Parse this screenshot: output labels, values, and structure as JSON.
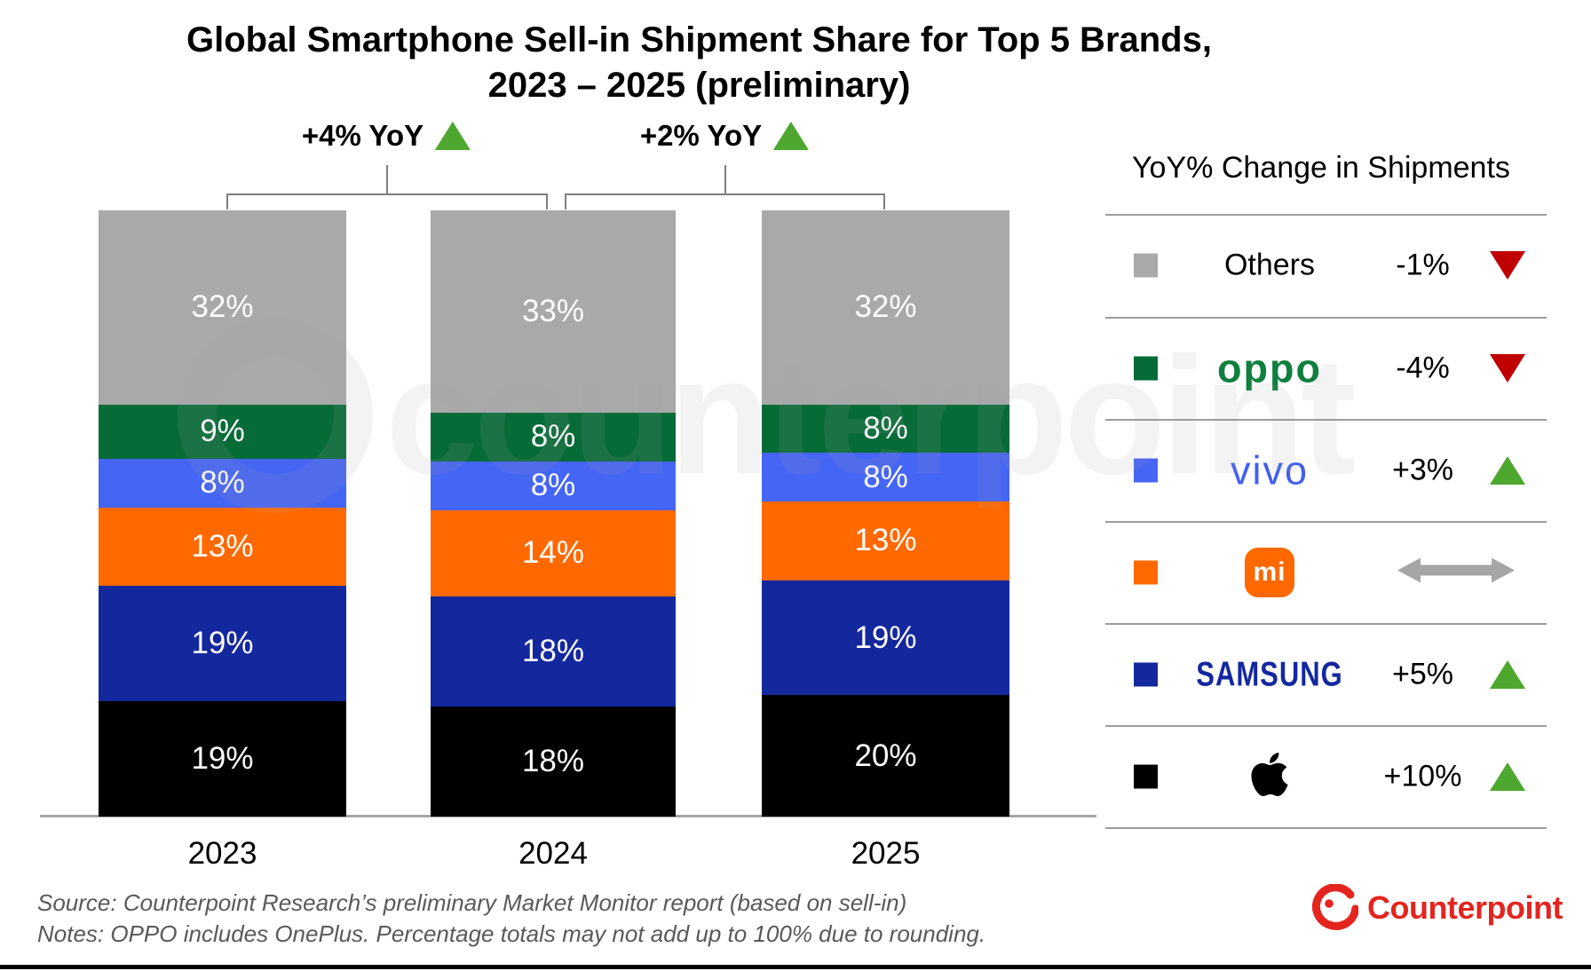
{
  "title": {
    "line1": "Global Smartphone Sell-in Shipment Share for Top 5 Brands,",
    "line2": "2023 – 2025 (preliminary)"
  },
  "watermark": {
    "text": "counterpoint"
  },
  "chart_data": {
    "type": "bar",
    "subtype": "stacked-100-percent",
    "title": "Global Smartphone Sell-in Shipment Share for Top 5 Brands, 2023 – 2025 (preliminary)",
    "categories": [
      "2023",
      "2024",
      "2025"
    ],
    "unit": "%",
    "series_bottom_to_top": [
      {
        "name": "Apple",
        "color": "#000000",
        "values": [
          19,
          18,
          20
        ]
      },
      {
        "name": "Samsung",
        "color": "#14289E",
        "values": [
          19,
          18,
          19
        ]
      },
      {
        "name": "Xiaomi",
        "color": "#FF6900",
        "values": [
          13,
          14,
          13
        ]
      },
      {
        "name": "vivo",
        "color": "#4565F5",
        "values": [
          8,
          8,
          8
        ]
      },
      {
        "name": "OPPO",
        "color": "#076B38",
        "values": [
          9,
          8,
          8
        ]
      },
      {
        "name": "Others",
        "color": "#A9A9A9",
        "values": [
          32,
          33,
          32
        ]
      }
    ],
    "annotations": [
      {
        "between": [
          "2023",
          "2024"
        ],
        "label": "+4% YoY",
        "direction": "up"
      },
      {
        "between": [
          "2024",
          "2025"
        ],
        "label": "+2% YoY",
        "direction": "up"
      }
    ],
    "grid": false,
    "legend_position": "right"
  },
  "legend": {
    "header": "YoY% Change in Shipments",
    "rows": [
      {
        "name": "Others",
        "logo_style": "plain",
        "logo_text": "Others",
        "swatch": "#A9A9A9",
        "change": "-1%",
        "direction": "down"
      },
      {
        "name": "OPPO",
        "logo_style": "oppo",
        "logo_text": "oppo",
        "swatch": "#076B38",
        "change": "-4%",
        "direction": "down"
      },
      {
        "name": "vivo",
        "logo_style": "vivo",
        "logo_text": "vivo",
        "swatch": "#4565F5",
        "change": "+3%",
        "direction": "up"
      },
      {
        "name": "Xiaomi",
        "logo_style": "mi",
        "logo_text": "mi",
        "swatch": "#FF6900",
        "change": "",
        "direction": "flat"
      },
      {
        "name": "Samsung",
        "logo_style": "samsung",
        "logo_text": "SAMSUNG",
        "swatch": "#14289E",
        "change": "+5%",
        "direction": "up"
      },
      {
        "name": "Apple",
        "logo_style": "apple",
        "logo_text": "",
        "swatch": "#000000",
        "change": "+10%",
        "direction": "up"
      }
    ]
  },
  "footer": {
    "source": "Source: Counterpoint Research’s preliminary Market Monitor report (based on sell-in)",
    "notes": "Notes: OPPO includes OnePlus. Percentage totals may not add up to 100% due to rounding.",
    "brand": "Counterpoint"
  },
  "colors": {
    "up": "#4EA72E",
    "down": "#C00000",
    "flat": "#A6A6A6",
    "axis": "#A6A6A6",
    "bracket": "#7F7F7F",
    "brand_red": "#E4251F"
  }
}
